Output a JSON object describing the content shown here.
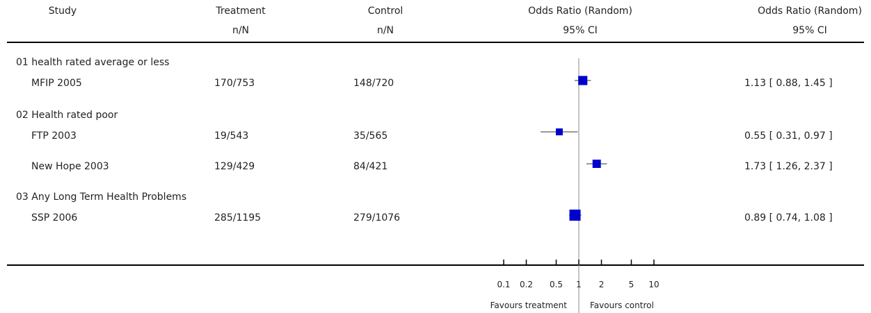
{
  "headers": {
    "study": "Study",
    "treatment": "Treatment",
    "control": "Control",
    "or_random_plot": "Odds Ratio (Random)",
    "or_random_text": "Odds Ratio (Random)",
    "treatment_sub": "n/N",
    "control_sub": "n/N",
    "ci_plot": "95% CI",
    "ci_text": "95% CI"
  },
  "groups": [
    {
      "title": "01 health rated average or less"
    },
    {
      "title": "02 Health rated poor"
    },
    {
      "title": "03 Any Long Term Health Problems"
    }
  ],
  "footer": {
    "favours_left": "Favours treatment",
    "favours_right": "Favours control"
  },
  "chart_data": {
    "type": "forest",
    "scale": "log",
    "x_range": [
      0.1,
      10
    ],
    "reference_line": 1,
    "x_ticks": [
      {
        "value": 0.1,
        "label": "0.1"
      },
      {
        "value": 0.2,
        "label": "0.2"
      },
      {
        "value": 0.5,
        "label": "0.5"
      },
      {
        "value": 1,
        "label": "1"
      },
      {
        "value": 2,
        "label": "2"
      },
      {
        "value": 5,
        "label": "5"
      },
      {
        "value": 10,
        "label": "10"
      }
    ],
    "studies": [
      {
        "group": 0,
        "name": "MFIP 2005",
        "treatment": "170/753",
        "control": "148/720",
        "or": 1.13,
        "lo": 0.88,
        "hi": 1.45,
        "ci_text": "1.13 [ 0.88, 1.45 ]",
        "weight": 0.55
      },
      {
        "group": 1,
        "name": "FTP 2003",
        "treatment": "19/543",
        "control": "35/565",
        "or": 0.55,
        "lo": 0.31,
        "hi": 0.97,
        "ci_text": "0.55 [ 0.31, 0.97 ]",
        "weight": 0.2
      },
      {
        "group": 1,
        "name": "New Hope 2003",
        "treatment": "129/429",
        "control": "84/421",
        "or": 1.73,
        "lo": 1.26,
        "hi": 2.37,
        "ci_text": "1.73 [ 1.26, 2.37 ]",
        "weight": 0.4
      },
      {
        "group": 2,
        "name": "SSP 2006",
        "treatment": "285/1195",
        "control": "279/1076",
        "or": 0.89,
        "lo": 0.74,
        "hi": 1.08,
        "ci_text": "0.89 [ 0.74, 1.08 ]",
        "weight": 1.0
      }
    ],
    "marker_color": "#0000cc"
  }
}
